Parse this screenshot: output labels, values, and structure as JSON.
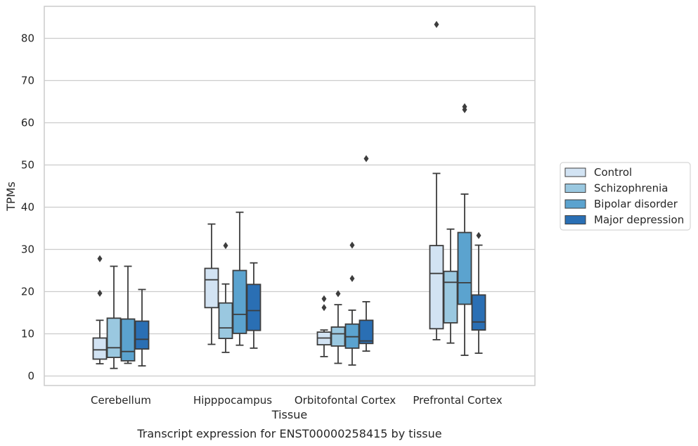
{
  "caption": "Transcript expression for ENST00000258415 by tissue",
  "chart_data": {
    "type": "box",
    "xlabel": "Tissue",
    "ylabel": "TPMs",
    "ylim": [
      -2.3,
      87.5
    ],
    "yticks": [
      0,
      10,
      20,
      30,
      40,
      50,
      60,
      70,
      80
    ],
    "grid": "horizontal",
    "legend_position": "outside-right",
    "categories": [
      "Cerebellum",
      "Hipppocampus",
      "Orbitofontal Cortex",
      "Prefrontal Cortex"
    ],
    "series": [
      {
        "name": "Control",
        "color": "#d2e3f3",
        "boxes": [
          {
            "whisker_low": 2.9,
            "q1": 4.0,
            "median": 6.2,
            "q3": 9.0,
            "whisker_high": 13.2,
            "outliers": [
              19.6,
              27.8
            ]
          },
          {
            "whisker_low": 7.5,
            "q1": 16.2,
            "median": 22.8,
            "q3": 25.5,
            "whisker_high": 36.0,
            "outliers": []
          },
          {
            "whisker_low": 4.6,
            "q1": 7.4,
            "median": 9.0,
            "q3": 10.4,
            "whisker_high": 10.9,
            "outliers": [
              16.2,
              18.3
            ]
          },
          {
            "whisker_low": 8.6,
            "q1": 11.2,
            "median": 24.3,
            "q3": 30.9,
            "whisker_high": 48.0,
            "outliers": [
              83.3
            ]
          }
        ]
      },
      {
        "name": "Schizophrenia",
        "color": "#9ac8e0",
        "boxes": [
          {
            "whisker_low": 1.8,
            "q1": 4.4,
            "median": 6.7,
            "q3": 13.7,
            "whisker_high": 26.0,
            "outliers": []
          },
          {
            "whisker_low": 5.6,
            "q1": 8.9,
            "median": 11.4,
            "q3": 17.3,
            "whisker_high": 21.8,
            "outliers": [
              30.9
            ]
          },
          {
            "whisker_low": 3.0,
            "q1": 7.1,
            "median": 10.0,
            "q3": 11.6,
            "whisker_high": 16.9,
            "outliers": [
              19.5
            ]
          },
          {
            "whisker_low": 7.8,
            "q1": 12.6,
            "median": 22.2,
            "q3": 24.8,
            "whisker_high": 34.8,
            "outliers": []
          }
        ]
      },
      {
        "name": "Bipolar disorder",
        "color": "#5ba3cf",
        "boxes": [
          {
            "whisker_low": 3.0,
            "q1": 3.6,
            "median": 5.8,
            "q3": 13.5,
            "whisker_high": 26.0,
            "outliers": []
          },
          {
            "whisker_low": 7.3,
            "q1": 10.1,
            "median": 14.6,
            "q3": 25.0,
            "whisker_high": 38.8,
            "outliers": []
          },
          {
            "whisker_low": 2.6,
            "q1": 6.6,
            "median": 9.3,
            "q3": 12.3,
            "whisker_high": 15.6,
            "outliers": [
              23.1,
              31.0
            ]
          },
          {
            "whisker_low": 4.9,
            "q1": 17.0,
            "median": 22.1,
            "q3": 34.0,
            "whisker_high": 43.1,
            "outliers": [
              63.1,
              63.8
            ]
          }
        ]
      },
      {
        "name": "Major depression",
        "color": "#2a6fb4",
        "boxes": [
          {
            "whisker_low": 2.4,
            "q1": 6.4,
            "median": 8.7,
            "q3": 13.0,
            "whisker_high": 20.5,
            "outliers": []
          },
          {
            "whisker_low": 6.6,
            "q1": 10.8,
            "median": 15.5,
            "q3": 21.7,
            "whisker_high": 26.8,
            "outliers": []
          },
          {
            "whisker_low": 5.9,
            "q1": 7.7,
            "median": 8.3,
            "q3": 13.2,
            "whisker_high": 17.6,
            "outliers": [
              51.5
            ]
          },
          {
            "whisker_low": 5.4,
            "q1": 10.9,
            "median": 12.8,
            "q3": 19.2,
            "whisker_high": 31.0,
            "outliers": [
              33.3
            ]
          }
        ]
      }
    ]
  }
}
